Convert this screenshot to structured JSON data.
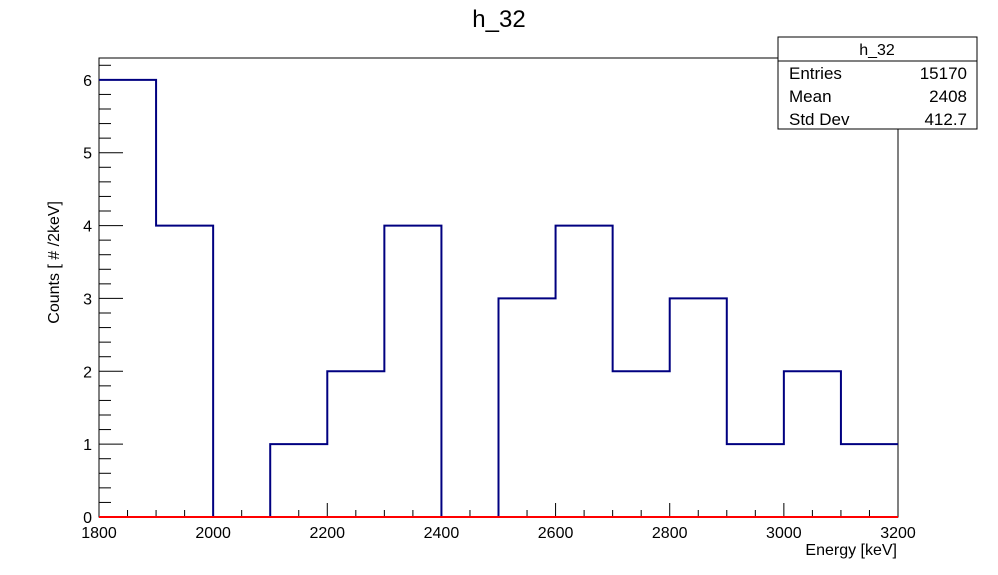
{
  "chart_data": {
    "type": "bar",
    "title": "h_32",
    "xlabel": "Energy [keV]",
    "ylabel": "Counts [ # /2keV]",
    "xlim": [
      1800,
      3200
    ],
    "ylim": [
      0,
      6.3
    ],
    "x_ticks": [
      1800,
      2000,
      2200,
      2400,
      2600,
      2800,
      3000,
      3200
    ],
    "y_ticks": [
      0,
      1,
      2,
      3,
      4,
      5,
      6
    ],
    "bin_edges": [
      1800,
      1900,
      2000,
      2100,
      2200,
      2300,
      2400,
      2500,
      2600,
      2700,
      2800,
      2900,
      3000,
      3100,
      3200
    ],
    "values": [
      6,
      4,
      0,
      1,
      2,
      4,
      0,
      3,
      4,
      2,
      3,
      1,
      2,
      1
    ],
    "line_color": "#000080",
    "baseline_color": "#ff0000",
    "grid": false
  },
  "stats_box": {
    "title": "h_32",
    "rows": [
      {
        "label": "Entries",
        "value": "15170"
      },
      {
        "label": "Mean",
        "value": "2408"
      },
      {
        "label": "Std Dev",
        "value": "412.7"
      }
    ]
  }
}
